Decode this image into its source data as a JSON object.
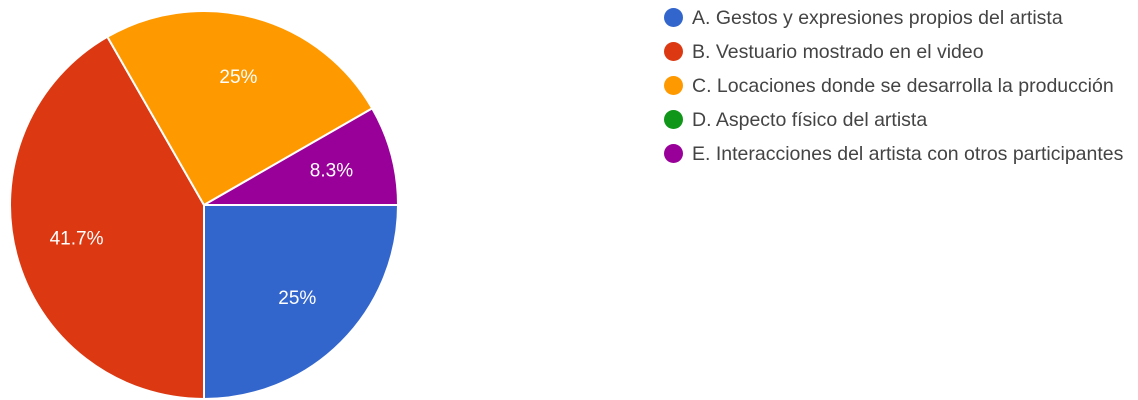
{
  "chart_data": {
    "type": "pie",
    "title": "",
    "categories": [
      "A. Gestos y expresiones propios del artista",
      "B. Vestuario mostrado en el video",
      "C. Locaciones donde se desarrolla la producción",
      "D. Aspecto físico del artista",
      "E. Interacciones del artista con otros participantes"
    ],
    "values": [
      25,
      41.7,
      25,
      0,
      8.3
    ],
    "labels": [
      "25%",
      "41.7%",
      "25%",
      "",
      "8.3%"
    ],
    "colors": [
      "#3366cc",
      "#dc3912",
      "#ff9900",
      "#109618",
      "#990099"
    ],
    "legend_position": "right"
  }
}
